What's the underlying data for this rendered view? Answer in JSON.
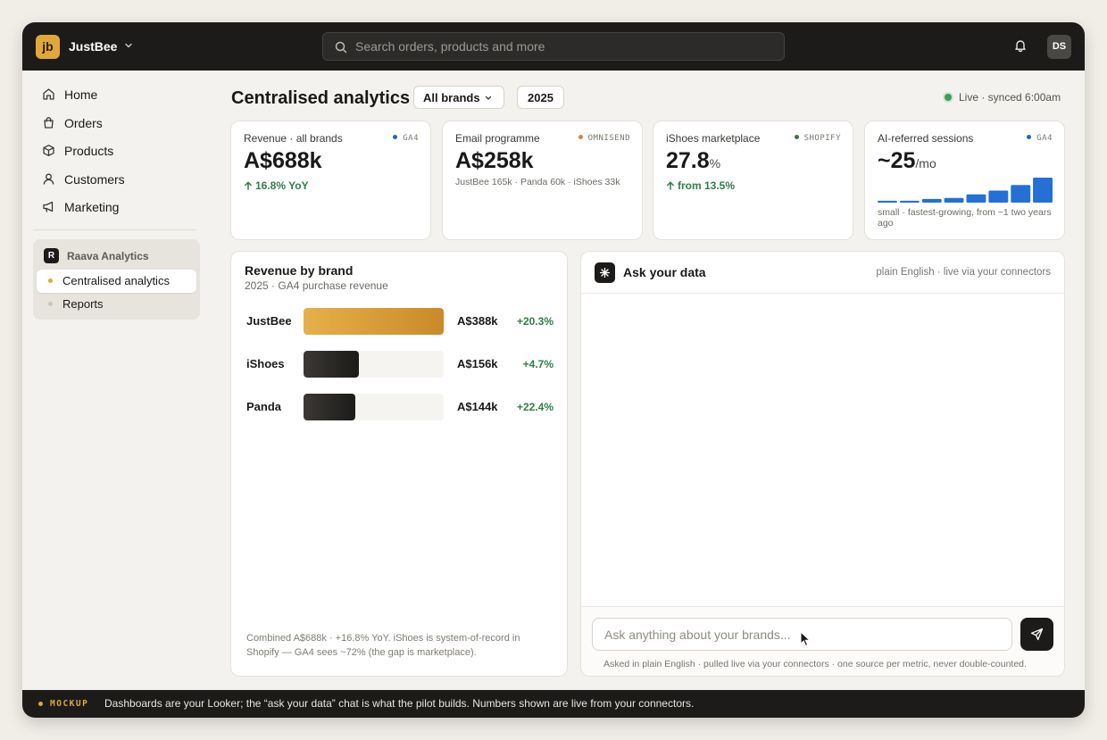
{
  "app": {
    "brand_initials": "jb",
    "brand_name": "JustBee",
    "search_placeholder": "Search orders, products and more",
    "user_initials": "DS"
  },
  "sidebar": {
    "items": [
      {
        "label": "Home",
        "icon": "home-icon"
      },
      {
        "label": "Orders",
        "icon": "shopping-bag-icon"
      },
      {
        "label": "Products",
        "icon": "box-icon"
      },
      {
        "label": "Customers",
        "icon": "user-icon"
      },
      {
        "label": "Marketing",
        "icon": "megaphone-icon"
      }
    ],
    "workspace": {
      "logo": "R",
      "name": "Raava Analytics",
      "items": [
        {
          "label": "Centralised analytics",
          "active": true
        },
        {
          "label": "Reports",
          "active": false
        }
      ]
    }
  },
  "header": {
    "title": "Centralised analytics",
    "brand_filter": "All brands",
    "year_filter": "2025",
    "live_status": "Live · synced 6:00am"
  },
  "metrics": [
    {
      "label": "Revenue · all brands",
      "source": "GA4",
      "source_color": "#2563c9",
      "value": "A$688k",
      "delta": "16.8% YoY"
    },
    {
      "label": "Email programme",
      "source": "OMNISEND",
      "source_color": "#d08a2e",
      "value": "A$258k",
      "sub": "JustBee 165k · Panda 60k · iShoes 33k"
    },
    {
      "label": "iShoes marketplace",
      "source": "SHOPIFY",
      "source_color": "#2f7d4a",
      "value": "27.8",
      "unit": "%",
      "delta": "from 13.5%"
    },
    {
      "label": "AI-referred sessions",
      "source": "GA4",
      "source_color": "#2563c9",
      "value": "~25",
      "unit": "/mo",
      "note": "small · fastest-growing, from ~1 two years ago",
      "sparkline": [
        2,
        2,
        4,
        5,
        9,
        13,
        19,
        27
      ]
    }
  ],
  "revenue_by_brand": {
    "title": "Revenue by brand",
    "subtitle": "2025 · GA4 purchase revenue",
    "max": 388,
    "rows": [
      {
        "name": "JustBee",
        "value": 388,
        "value_label": "A$388k",
        "change": "+20.3%",
        "style": "gold"
      },
      {
        "name": "iShoes",
        "value": 156,
        "value_label": "A$156k",
        "change": "+4.7%",
        "style": "dark"
      },
      {
        "name": "Panda",
        "value": 144,
        "value_label": "A$144k",
        "change": "+22.4%",
        "style": "dark"
      }
    ],
    "footnote": "Combined A$688k · +16.8% YoY. iShoes is system-of-record in Shopify — GA4 sees ~72% (the gap is marketplace)."
  },
  "ask": {
    "title": "Ask your data",
    "meta": "plain English · live via your connectors",
    "input_placeholder": "Ask anything about your brands...",
    "footnote": "Asked in plain English · pulled live via your connectors · one source per metric, never double-counted."
  },
  "footer": {
    "tag": "MOCKUP",
    "text": "Dashboards are your Looker; the “ask your data” chat is what the pilot builds. Numbers shown are live from your connectors."
  },
  "colors": {
    "accent_gold": "#e0a83a",
    "live_green": "#3f9c5b",
    "positive": "#2f7d4a",
    "bar_blue": "#2570d4",
    "dark": "#1c1b19"
  }
}
